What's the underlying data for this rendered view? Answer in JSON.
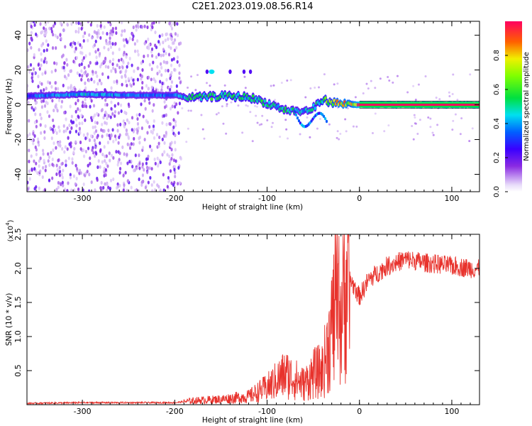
{
  "figure_title": "C2E1.2023.019.08.56.R14",
  "chart_data": [
    {
      "type": "heatmap",
      "title": "",
      "xlabel": "Height of straight line (km)",
      "ylabel": "Frequency (Hz)",
      "xlim": [
        -360,
        130
      ],
      "ylim": [
        -50,
        48
      ],
      "xticks": [
        -300,
        -200,
        -100,
        0,
        100
      ],
      "xtick_labels": [
        "-300",
        "-200",
        "-100",
        "0",
        "100"
      ],
      "yticks": [
        -40,
        -20,
        0,
        20,
        40
      ],
      "ytick_labels": [
        "-40",
        "-20",
        "0",
        "20",
        "40"
      ],
      "colorbar": {
        "label": "Normalized spectral amplitude",
        "range": [
          0,
          1
        ],
        "ticks": [
          0.0,
          0.2,
          0.4,
          0.6,
          0.8
        ],
        "tick_labels": [
          "0.0",
          "0.2",
          "0.4",
          "0.6",
          "0.8"
        ]
      },
      "ridge": {
        "description_points_x": [
          -360,
          -300,
          -250,
          -200,
          -180,
          -150,
          -120,
          -100,
          -80,
          -60,
          -50,
          -40,
          -30,
          -20,
          -10,
          0,
          130
        ],
        "frequency_hz": [
          5,
          6,
          5.5,
          5.5,
          4,
          5,
          4.5,
          1,
          -3,
          -4,
          -2,
          3,
          1.5,
          0.5,
          0.5,
          0,
          0
        ],
        "intensity": [
          0.35,
          0.45,
          0.4,
          0.35,
          0.55,
          0.55,
          0.55,
          0.5,
          0.5,
          0.45,
          0.5,
          0.6,
          0.65,
          0.85,
          0.75,
          0.95,
          0.95
        ]
      },
      "scatter_noise_region_x": [
        -360,
        -193
      ],
      "grid": false
    },
    {
      "type": "line",
      "title": "",
      "xlabel": "Height of straight line (km)",
      "ylabel": "SNR (10 * v/v)",
      "y_multiplier_label": "(x10",
      "y_multiplier_exp": "4",
      "xlim": [
        -360,
        130
      ],
      "ylim": [
        0,
        2.5
      ],
      "xticks": [
        -300,
        -200,
        -100,
        0,
        100
      ],
      "xtick_labels": [
        "-300",
        "-200",
        "-100",
        "0",
        "100"
      ],
      "yticks": [
        0.5,
        1.0,
        1.5,
        2.0,
        2.5
      ],
      "ytick_labels": [
        "0.5",
        "1.0",
        "1.5",
        "2.0",
        "2.5"
      ],
      "color": "#e8322c",
      "envelope": {
        "x": [
          -360,
          -300,
          -250,
          -200,
          -180,
          -150,
          -120,
          -100,
          -80,
          -60,
          -50,
          -40,
          -30,
          -25,
          -20,
          -15,
          -10,
          0,
          10,
          20,
          30,
          50,
          70,
          100,
          130
        ],
        "y": [
          0.02,
          0.03,
          0.03,
          0.03,
          0.06,
          0.08,
          0.12,
          0.25,
          0.45,
          0.3,
          0.45,
          0.5,
          1.1,
          1.5,
          1.3,
          1.8,
          1.85,
          1.6,
          1.85,
          1.95,
          2.05,
          2.15,
          2.1,
          2.05,
          2.0
        ]
      },
      "grid": false
    }
  ]
}
